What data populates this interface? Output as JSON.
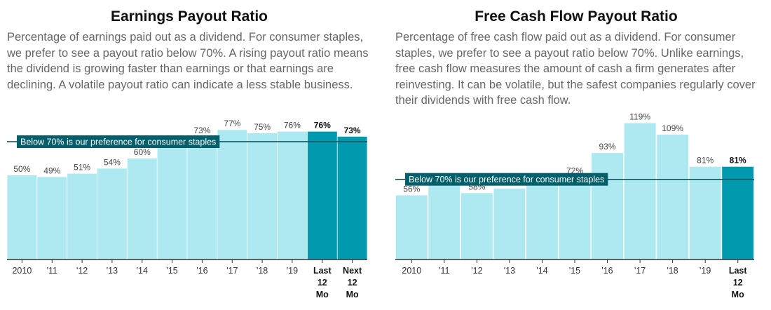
{
  "colors": {
    "bar": "#aee9f1",
    "bar_highlight": "#0099ad",
    "reference_line": "#004d57",
    "label_box": "#005f6b",
    "label_text": "#ffffff",
    "axis": "#333333",
    "value_text": "#444444"
  },
  "chart_data": [
    {
      "type": "bar",
      "title": "Earnings Payout Ratio",
      "subtitle": "Percentage of earnings paid out as a dividend. For consumer staples, we prefer to see a payout ratio below 70%. A rising payout ratio means the dividend is growing faster than earnings or that earnings are declining. A volatile payout ratio can indicate a less stable business.",
      "categories": [
        [
          "2010"
        ],
        [
          "'11"
        ],
        [
          "'12"
        ],
        [
          "'13"
        ],
        [
          "'14"
        ],
        [
          "'15"
        ],
        [
          "'16"
        ],
        [
          "'17"
        ],
        [
          "'18"
        ],
        [
          "'19"
        ],
        [
          "Last",
          "12",
          "Mo"
        ],
        [
          "Next",
          "12",
          "Mo"
        ]
      ],
      "values": [
        50,
        49,
        51,
        54,
        60,
        67,
        73,
        77,
        75,
        76,
        76,
        73
      ],
      "value_labels": [
        "50%",
        "49%",
        "51%",
        "54%",
        "60%",
        "",
        "73%",
        "77%",
        "75%",
        "76%",
        "76%",
        "73%"
      ],
      "highlighted": [
        false,
        false,
        false,
        false,
        false,
        false,
        false,
        false,
        false,
        false,
        true,
        true
      ],
      "reference_line": {
        "value": 70,
        "label": "Below 70% is our preference for consumer staples"
      },
      "ylim": [
        0,
        80
      ],
      "xlabel": "",
      "ylabel": "",
      "grid": false
    },
    {
      "type": "bar",
      "title": "Free Cash Flow Payout Ratio",
      "subtitle": "Percentage of free cash flow paid out as a dividend. For consumer staples, we prefer to see a payout ratio below 70%. Unlike earnings, free cash flow measures the amount of cash a firm generates after reinvesting. It can be volatile, but the safest companies regularly cover their dividends with free cash flow.",
      "categories": [
        [
          "2010"
        ],
        [
          "'11"
        ],
        [
          "'12"
        ],
        [
          "'13"
        ],
        [
          "'14"
        ],
        [
          "'15"
        ],
        [
          "'16"
        ],
        [
          "'17"
        ],
        [
          "'18"
        ],
        [
          "'19"
        ],
        [
          "Last",
          "12",
          "Mo"
        ]
      ],
      "values": [
        56,
        68,
        58,
        62,
        65,
        72,
        93,
        119,
        109,
        81,
        81
      ],
      "value_labels": [
        "56%",
        "",
        "58%",
        "",
        "",
        "72%",
        "93%",
        "119%",
        "109%",
        "81%",
        "81%"
      ],
      "highlighted": [
        false,
        false,
        false,
        false,
        false,
        false,
        false,
        false,
        false,
        false,
        true
      ],
      "reference_line": {
        "value": 70,
        "label": "Below 70% is our preference for consumer staples"
      },
      "ylim": [
        0,
        120
      ],
      "xlabel": "",
      "ylabel": "",
      "grid": false
    }
  ]
}
